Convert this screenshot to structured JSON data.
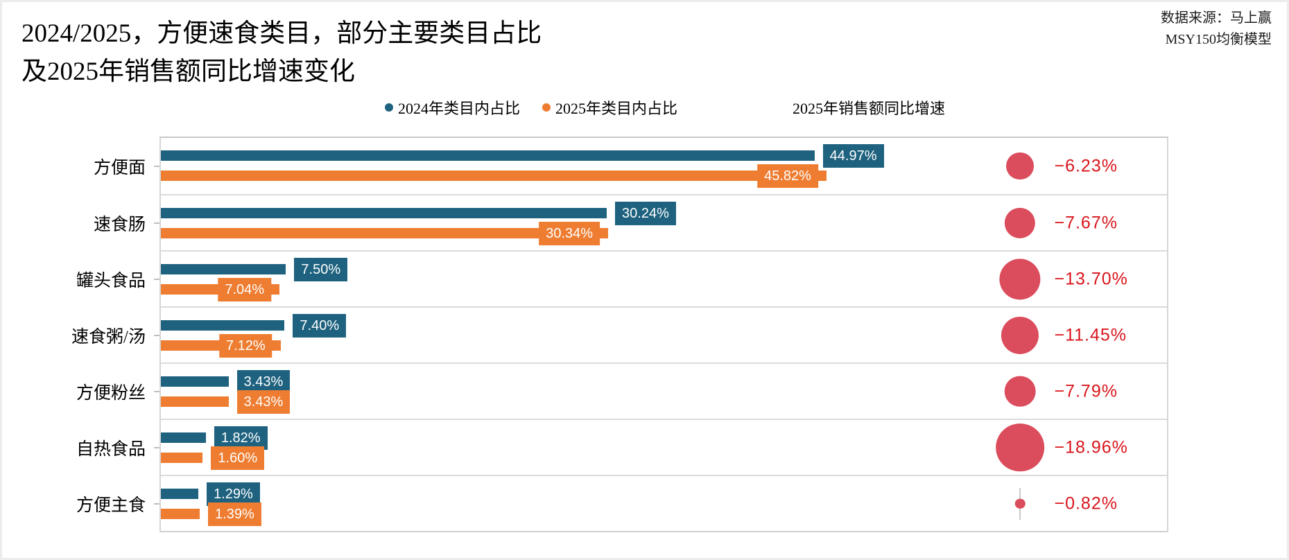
{
  "title": {
    "line1": "2024/2025，方便速食类目，部分主要类目占比",
    "line2": "及2025年销售额同比增速变化"
  },
  "source": {
    "line1": "数据来源：马上赢",
    "line2": "MSY150均衡模型"
  },
  "legend": {
    "series_2024_label": "2024年类目内占比",
    "series_2025_label": "2025年类目内占比",
    "bubble_header": "2025年销售额同比增速"
  },
  "colors": {
    "blue": "#1e627f",
    "orange": "#ee7d31",
    "bubble_red": "#db4c5c",
    "red_text": "#d9151c",
    "grid": "#dbdbdb"
  },
  "chart_data": {
    "type": "bar",
    "orientation": "horizontal-grouped-with-bubbles",
    "title": "2024/2025，方便速食类目，部分主要类目占比及2025年销售额同比增速变化",
    "categories": [
      "方便面",
      "速食肠",
      "罐头食品",
      "速食粥/汤",
      "方便粉丝",
      "自热食品",
      "方便主食"
    ],
    "series": [
      {
        "name": "2024年类目内占比",
        "color": "#1e627f",
        "values": [
          44.97,
          30.24,
          7.5,
          7.4,
          3.43,
          1.82,
          1.29
        ],
        "labels": [
          "44.97%",
          "30.24%",
          "7.50%",
          "7.40%",
          "3.43%",
          "1.82%",
          "1.29%"
        ]
      },
      {
        "name": "2025年类目内占比",
        "color": "#ee7d31",
        "values": [
          45.82,
          30.34,
          7.04,
          7.12,
          3.43,
          1.6,
          1.39
        ],
        "labels": [
          "45.82%",
          "30.34%",
          "7.04%",
          "7.12%",
          "3.43%",
          "1.60%",
          "1.39%"
        ]
      }
    ],
    "bubbles": {
      "name": "2025年销售额同比增速",
      "color": "#db4c5c",
      "values": [
        -6.23,
        -7.67,
        -13.7,
        -11.45,
        -7.79,
        -18.96,
        -0.82
      ],
      "labels": [
        "−6.23%",
        "−7.67%",
        "−13.70%",
        "−11.45%",
        "−7.79%",
        "−18.96%",
        "−0.82%"
      ]
    },
    "xlim": [
      0,
      50
    ],
    "grid": "horizontal-row-separators",
    "legend_position": "top-center"
  }
}
